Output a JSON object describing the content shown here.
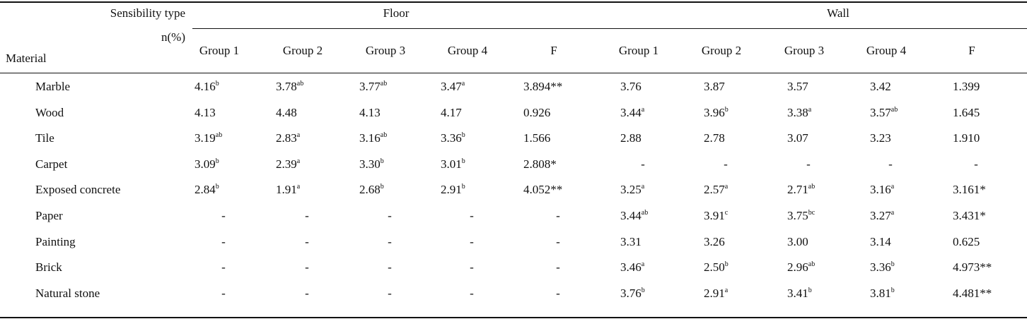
{
  "table": {
    "corner": {
      "top": "Sensibility type",
      "middle": "n(%)",
      "bottom": "Material"
    },
    "groups": [
      "Floor",
      "Wall"
    ],
    "columns": [
      "Group 1",
      "Group 2",
      "Group 3",
      "Group 4",
      "F",
      "Group 1",
      "Group 2",
      "Group 3",
      "Group 4",
      "F"
    ],
    "rows": [
      {
        "label": "Marble",
        "cells": [
          {
            "text": "4.16",
            "sup": "b"
          },
          {
            "text": "3.78",
            "sup": "ab"
          },
          {
            "text": "3.77",
            "sup": "ab"
          },
          {
            "text": "3.47",
            "sup": "a"
          },
          "3.894**",
          "3.76",
          "3.87",
          "3.57",
          "3.42",
          "1.399"
        ]
      },
      {
        "label": "Wood",
        "cells": [
          "4.13",
          "4.48",
          "4.13",
          "4.17",
          "0.926",
          {
            "text": "3.44",
            "sup": "a"
          },
          {
            "text": "3.96",
            "sup": "b"
          },
          {
            "text": "3.38",
            "sup": "a"
          },
          {
            "text": "3.57",
            "sup": "ab"
          },
          "1.645"
        ]
      },
      {
        "label": "Tile",
        "cells": [
          {
            "text": "3.19",
            "sup": "ab"
          },
          {
            "text": "2.83",
            "sup": "a"
          },
          {
            "text": "3.16",
            "sup": "ab"
          },
          {
            "text": "3.36",
            "sup": "b"
          },
          "1.566",
          "2.88",
          "2.78",
          "3.07",
          "3.23",
          "1.910"
        ]
      },
      {
        "label": "Carpet",
        "cells": [
          {
            "text": "3.09",
            "sup": "b"
          },
          {
            "text": "2.39",
            "sup": "a"
          },
          {
            "text": "3.30",
            "sup": "b"
          },
          {
            "text": "3.01",
            "sup": "b"
          },
          "2.808*",
          "-",
          "-",
          "-",
          "-",
          "-"
        ]
      },
      {
        "label": "Exposed concrete",
        "cells": [
          {
            "text": "2.84",
            "sup": "b"
          },
          {
            "text": "1.91",
            "sup": "a"
          },
          {
            "text": "2.68",
            "sup": "b"
          },
          {
            "text": "2.91",
            "sup": "b"
          },
          "4.052**",
          {
            "text": "3.25",
            "sup": "a"
          },
          {
            "text": "2.57",
            "sup": "a"
          },
          {
            "text": "2.71",
            "sup": "ab"
          },
          {
            "text": "3.16",
            "sup": "a"
          },
          "3.161*"
        ]
      },
      {
        "label": "Paper",
        "cells": [
          "-",
          "-",
          "-",
          "-",
          "-",
          {
            "text": "3.44",
            "sup": "ab"
          },
          {
            "text": "3.91",
            "sup": "c"
          },
          {
            "text": "3.75",
            "sup": "bc"
          },
          {
            "text": "3.27",
            "sup": "a"
          },
          "3.431*"
        ]
      },
      {
        "label": "Painting",
        "cells": [
          "-",
          "-",
          "-",
          "-",
          "-",
          "3.31",
          "3.26",
          "3.00",
          "3.14",
          "0.625"
        ]
      },
      {
        "label": "Brick",
        "cells": [
          "-",
          "-",
          "-",
          "-",
          "-",
          {
            "text": "3.46",
            "sup": "a"
          },
          {
            "text": "2.50",
            "sup": "b"
          },
          {
            "text": "2.96",
            "sup": "ab"
          },
          {
            "text": "3.36",
            "sup": "b"
          },
          "4.973**"
        ]
      },
      {
        "label": "Natural stone",
        "cells": [
          "-",
          "-",
          "-",
          "-",
          "-",
          {
            "text": "3.76",
            "sup": "b"
          },
          {
            "text": "2.91",
            "sup": "a"
          },
          {
            "text": "3.41",
            "sup": "b"
          },
          {
            "text": "3.81",
            "sup": "b"
          },
          "4.481**"
        ]
      }
    ]
  }
}
